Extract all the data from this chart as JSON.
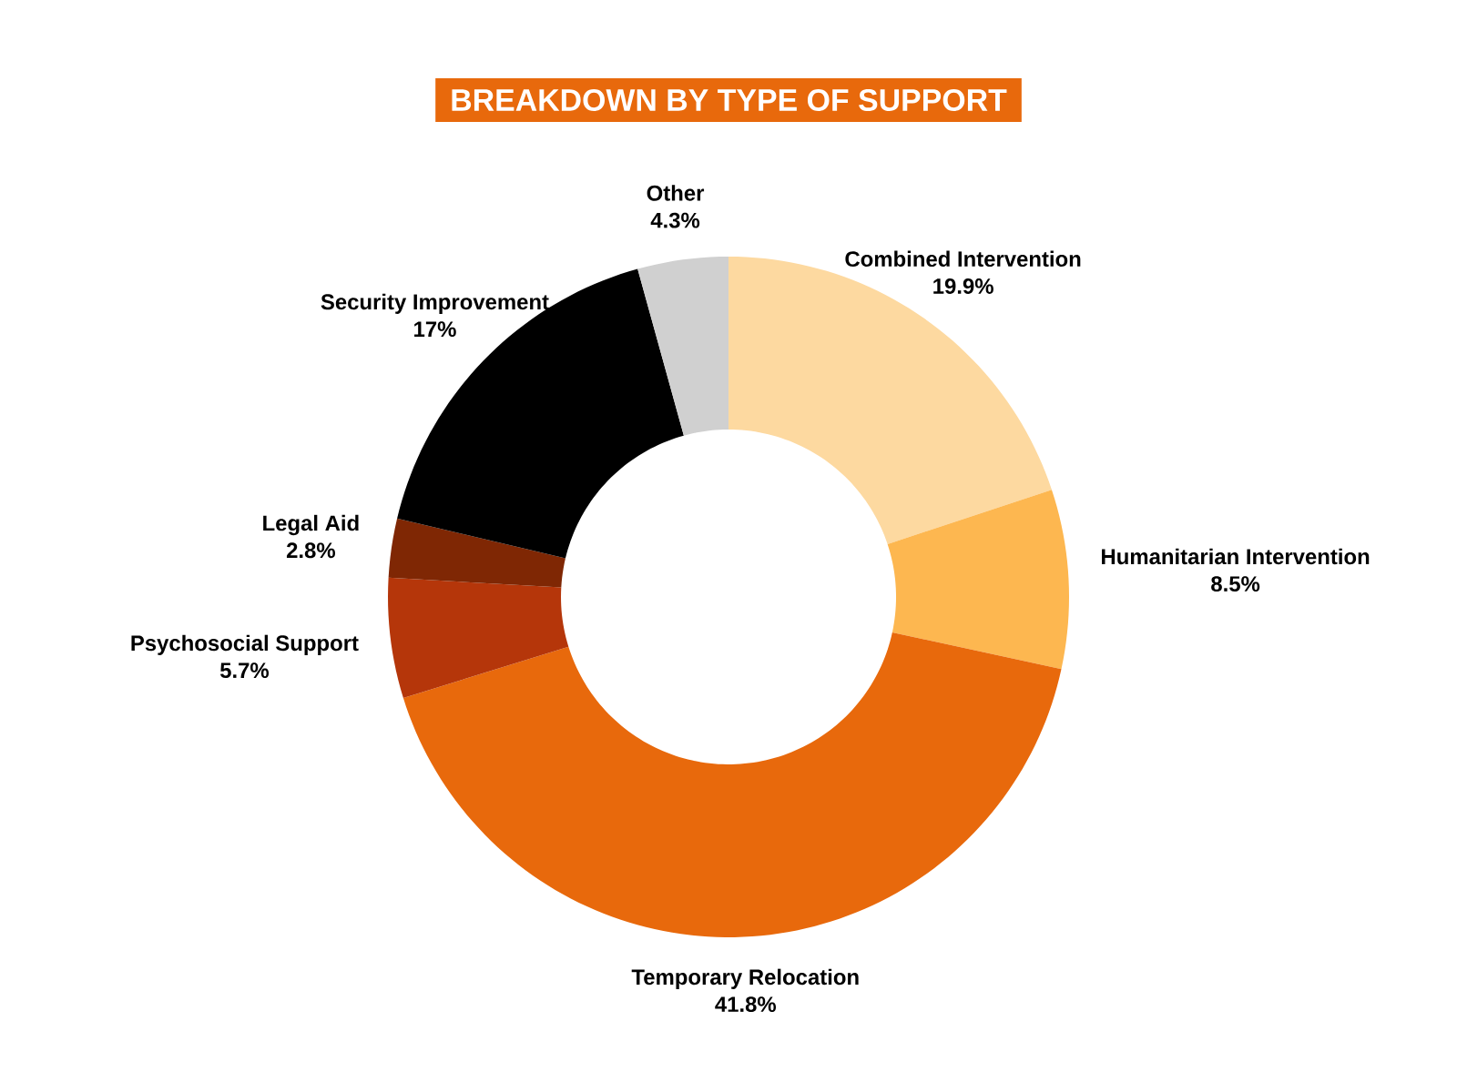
{
  "chart_data": {
    "type": "donut",
    "title": "BREAKDOWN BY TYPE OF SUPPORT",
    "categories": [
      "Combined Intervention",
      "Humanitarian Intervention",
      "Temporary Relocation",
      "Psychosocial Support",
      "Legal Aid",
      "Security Improvement",
      "Other"
    ],
    "values": [
      19.9,
      8.5,
      41.8,
      5.7,
      2.8,
      17,
      4.3
    ],
    "value_labels": [
      "19.9%",
      "8.5%",
      "41.8%",
      "5.7%",
      "2.8%",
      "17%",
      "4.3%"
    ],
    "colors": [
      "#fdd9a0",
      "#fdb750",
      "#e8690c",
      "#b5360a",
      "#7f2704",
      "#000000",
      "#d0d0d0"
    ]
  }
}
